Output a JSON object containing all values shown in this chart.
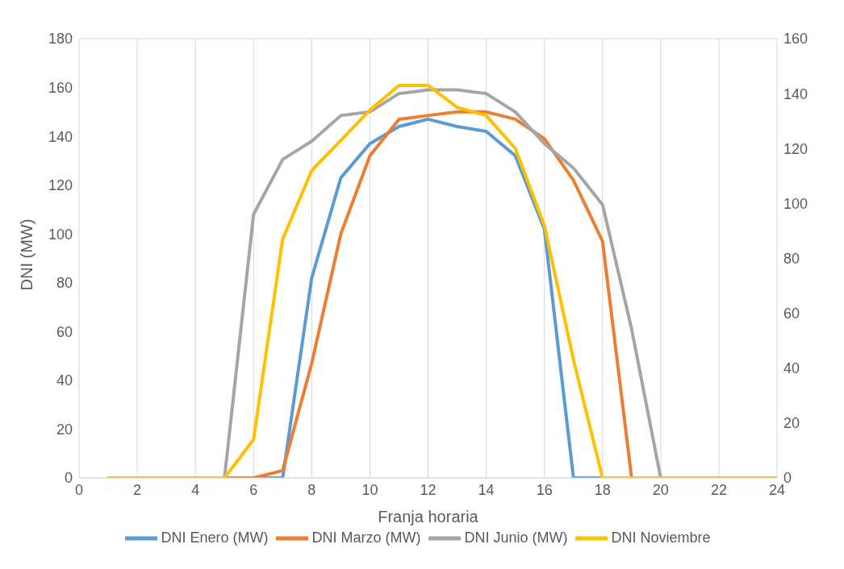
{
  "chart_data": {
    "type": "line",
    "xlabel": "Franja horaria",
    "ylabel": "DNI (MW)",
    "x": [
      1,
      2,
      3,
      4,
      5,
      6,
      7,
      8,
      9,
      10,
      11,
      12,
      13,
      14,
      15,
      16,
      17,
      18,
      19,
      20,
      21,
      22,
      23,
      24
    ],
    "series": [
      {
        "name": "DNI Enero (MW)",
        "color": "#5b9bd5",
        "values": [
          null,
          null,
          null,
          null,
          0,
          0,
          0,
          82,
          123,
          137,
          144,
          147,
          144,
          142,
          132,
          102,
          0,
          0,
          0,
          null,
          null,
          null,
          null,
          null
        ]
      },
      {
        "name": "DNI Marzo (MW)",
        "color": "#ed7d31",
        "values": [
          null,
          null,
          null,
          null,
          0,
          0,
          3,
          47,
          100,
          132,
          147,
          148.5,
          150,
          150,
          147,
          139,
          122,
          97,
          0,
          0,
          null,
          null,
          null,
          null
        ]
      },
      {
        "name": "DNI Junio (MW)",
        "color": "#a5a5a5",
        "values": [
          null,
          null,
          null,
          null,
          0,
          108,
          130.5,
          138,
          148.5,
          150,
          157.5,
          159,
          159,
          157.5,
          150,
          137,
          127,
          112,
          61,
          0,
          null,
          null,
          null,
          null
        ]
      },
      {
        "name": "DNI Noviembre",
        "color": "#ffc000",
        "axis": "y2",
        "values": [
          0,
          0,
          0,
          0,
          0,
          14,
          87,
          112,
          123,
          134,
          143,
          143,
          135,
          132,
          120,
          92,
          43,
          0,
          0,
          0,
          0,
          0,
          0,
          0
        ]
      }
    ],
    "xlim": [
      0,
      24
    ],
    "xticks": [
      0,
      2,
      4,
      6,
      8,
      10,
      12,
      14,
      16,
      18,
      20,
      22,
      24
    ],
    "ylim": [
      0,
      180
    ],
    "yticks": [
      0,
      20,
      40,
      60,
      80,
      100,
      120,
      140,
      160,
      180
    ],
    "y2lim": [
      0,
      160
    ],
    "y2ticks": [
      0,
      20,
      40,
      60,
      80,
      100,
      120,
      140,
      160
    ],
    "grid": true,
    "legend": "bottom",
    "marker": "none",
    "line_style": "solid"
  }
}
